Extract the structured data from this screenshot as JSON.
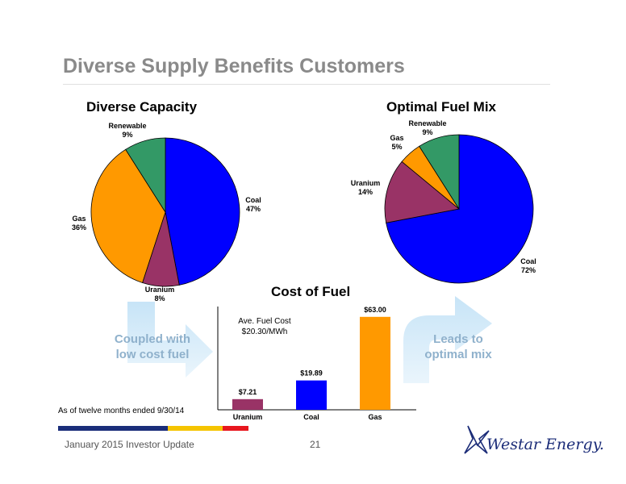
{
  "slide": {
    "title": "Diverse Supply Benefits Customers",
    "footer_left": "January 2015 Investor Update",
    "page_number": "21",
    "footnote": "As of twelve months ended 9/30/14",
    "logo_text": "Westar Energy.",
    "stripe_colors": [
      "#1a2d7a",
      "#f5c400",
      "#e8171e"
    ]
  },
  "arrows": {
    "left_text": "Coupled with low cost fuel",
    "right_text": "Leads to optimal mix",
    "color": "#d6ebf8"
  },
  "chart_data": [
    {
      "type": "pie",
      "title": "Diverse Capacity",
      "slices": [
        {
          "name": "Coal",
          "value": 47,
          "label": "47%",
          "color": "#0000ff"
        },
        {
          "name": "Uranium",
          "value": 8,
          "label": "8%",
          "color": "#993366"
        },
        {
          "name": "Gas",
          "value": 36,
          "label": "36%",
          "color": "#ff9900"
        },
        {
          "name": "Renewable",
          "value": 9,
          "label": "9%",
          "color": "#339966"
        }
      ]
    },
    {
      "type": "pie",
      "title": "Optimal Fuel Mix",
      "slices": [
        {
          "name": "Coal",
          "value": 72,
          "label": "72%",
          "color": "#0000ff"
        },
        {
          "name": "Uranium",
          "value": 14,
          "label": "14%",
          "color": "#993366"
        },
        {
          "name": "Gas",
          "value": 5,
          "label": "5%",
          "color": "#ff9900"
        },
        {
          "name": "Renewable",
          "value": 9,
          "label": "9%",
          "color": "#339966"
        }
      ]
    },
    {
      "type": "bar",
      "title": "Cost of Fuel",
      "categories": [
        "Uranium",
        "Coal",
        "Gas"
      ],
      "values": [
        7.21,
        19.89,
        63.0
      ],
      "value_labels": [
        "$7.21",
        "$19.89",
        "$63.00"
      ],
      "colors": [
        "#993366",
        "#0000ff",
        "#ff9900"
      ],
      "ylim": [
        0,
        70
      ],
      "annotation": "Ave. Fuel Cost $20.30/MWh"
    }
  ]
}
